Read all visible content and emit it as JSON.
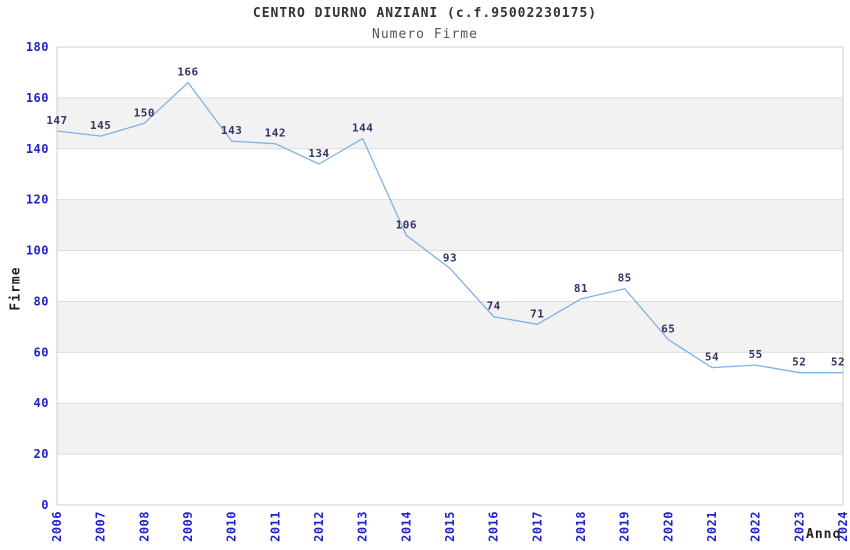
{
  "chart_data": {
    "type": "line",
    "title": "CENTRO DIURNO ANZIANI (c.f.95002230175)",
    "subtitle": "Numero Firme",
    "xlabel": "Anno",
    "ylabel": "Firme",
    "categories": [
      "2006",
      "2007",
      "2008",
      "2009",
      "2010",
      "2011",
      "2012",
      "2013",
      "2014",
      "2015",
      "2016",
      "2017",
      "2018",
      "2019",
      "2020",
      "2021",
      "2022",
      "2023",
      "2024"
    ],
    "values": [
      147,
      145,
      150,
      166,
      143,
      142,
      134,
      144,
      106,
      93,
      74,
      71,
      81,
      85,
      65,
      54,
      55,
      52,
      52
    ],
    "ylim": [
      0,
      180
    ],
    "ytick_step": 20,
    "yticks": [
      0,
      20,
      40,
      60,
      80,
      100,
      120,
      140,
      160,
      180
    ],
    "legend": "none",
    "grid": "alternating horizontal bands every 20 units",
    "point_labels_visible": true,
    "colors": {
      "line": "#7fb2e5",
      "tick_label": "#2222cc",
      "value_label": "#333366",
      "band_fill": "#f2f2f2",
      "grid_line": "#dddddd",
      "plot_border": "#cccccc",
      "title": "#333333",
      "subtitle": "#555555",
      "axis_title": "#222222",
      "background": "#ffffff"
    }
  }
}
